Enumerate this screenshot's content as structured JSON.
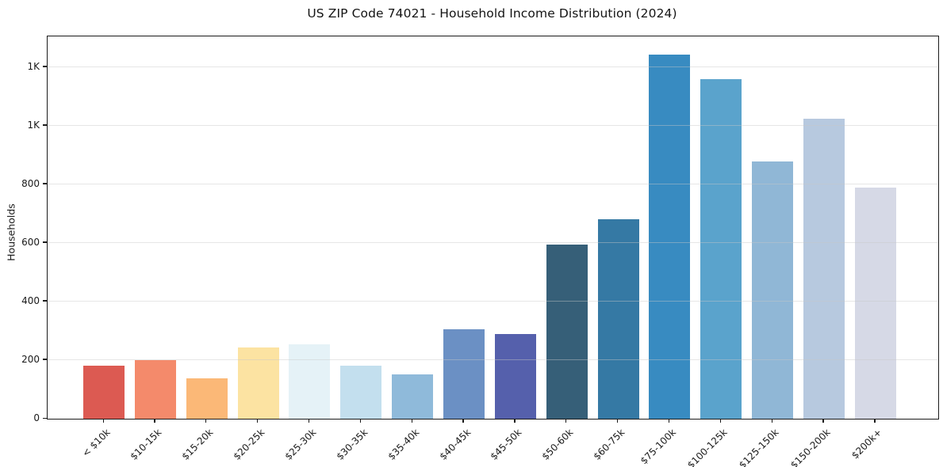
{
  "chart_data": {
    "type": "bar",
    "title": "US ZIP Code 74021 - Household Income Distribution (2024)",
    "xlabel": "",
    "ylabel": "Households",
    "categories": [
      "< $10k",
      "$10-15k",
      "$15-20k",
      "$20-25k",
      "$25-30k",
      "$30-35k",
      "$35-40k",
      "$40-45k",
      "$45-50k",
      "$50-60k",
      "$60-75k",
      "$75-100k",
      "$100-125k",
      "$125-150k",
      "$150-200k",
      "$200k+"
    ],
    "values": [
      180,
      200,
      139,
      244,
      253,
      182,
      150,
      306,
      289,
      595,
      682,
      1242,
      1158,
      877,
      1024,
      788
    ],
    "bar_colors": [
      "#dc5a52",
      "#f48a6b",
      "#fbb877",
      "#fce3a2",
      "#e5f2f7",
      "#c3dfee",
      "#8fbada",
      "#6b90c4",
      "#5560ac",
      "#365f78",
      "#3579a4",
      "#388bc1",
      "#5aa3cc",
      "#90b7d6",
      "#b7c9df",
      "#d6d9e6"
    ],
    "ylim": [
      0,
      1305
    ],
    "yticks": [
      {
        "value": 0,
        "label": "0"
      },
      {
        "value": 200,
        "label": "200"
      },
      {
        "value": 400,
        "label": "400"
      },
      {
        "value": 600,
        "label": "600"
      },
      {
        "value": 800,
        "label": "800"
      },
      {
        "value": 1000,
        "label": "1K"
      },
      {
        "value": 1200,
        "label": "1K"
      }
    ],
    "grid": "horizontal",
    "legend": "none"
  }
}
